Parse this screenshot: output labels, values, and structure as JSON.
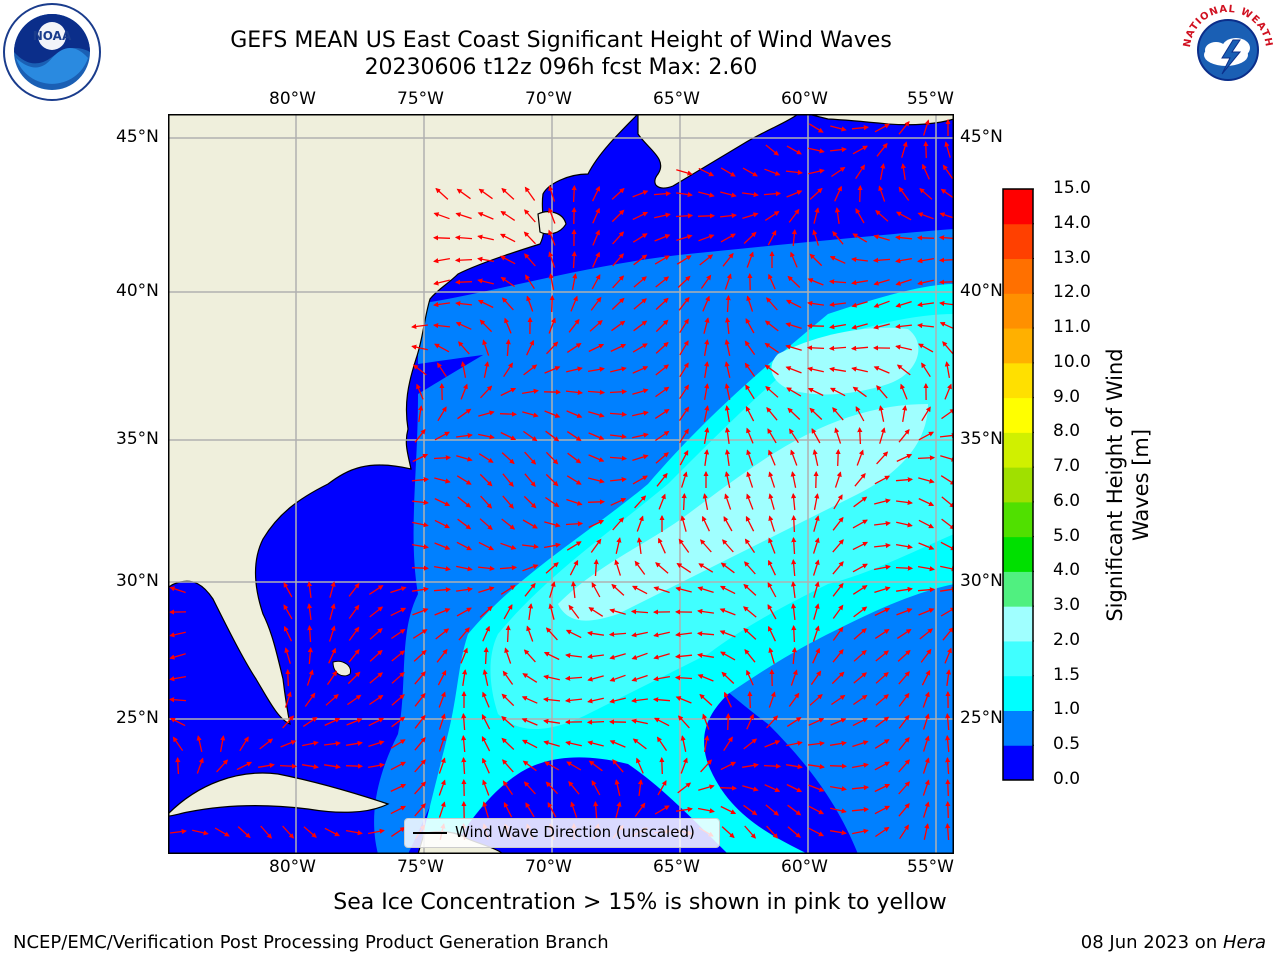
{
  "title": {
    "line1": "GEFS MEAN US East Coast Significant Height of Wind Waves",
    "line2": "20230606 t12z 096h fcst   Max: 2.60"
  },
  "logos": {
    "left": "noaa-logo",
    "right": "nws-logo",
    "nws_text": "NATIONAL WEATHER SERVICE",
    "noaa_ring": "NATIONAL OCEANIC AND ATMOSPHERIC ADMINISTRATION · U.S. DEPARTMENT OF COMMERCE"
  },
  "map": {
    "lon_labels": [
      "80°W",
      "75°W",
      "70°W",
      "65°W",
      "60°W",
      "55°W"
    ],
    "lat_labels": [
      "45°N",
      "40°N",
      "35°N",
      "30°N",
      "25°N"
    ],
    "lon_extent": [
      -85,
      -54.3
    ],
    "lat_extent": [
      20.5,
      46
    ],
    "ocean_colors": {
      "c0": "#0000ff",
      "c05": "#0080ff",
      "c10": "#00ffff",
      "c15": "#40ffff",
      "c20": "#a0ffff"
    },
    "land_color": "#efefdc",
    "arrow_color": "#ff0000",
    "legend_label": "Wind Wave Direction (unscaled)"
  },
  "colorbar": {
    "label": "Significant Height of Wind Waves [m]",
    "label_line1": "Significant Height of Wind",
    "label_line2": "Waves [m]",
    "ticks": [
      "0.0",
      "0.5",
      "1.0",
      "1.5",
      "2.0",
      "3.0",
      "4.0",
      "5.0",
      "6.0",
      "7.0",
      "8.0",
      "9.0",
      "10.0",
      "11.0",
      "12.0",
      "13.0",
      "14.0",
      "15.0"
    ],
    "colors": [
      "#0000ff",
      "#0080ff",
      "#00ffff",
      "#40ffff",
      "#a0ffff",
      "#50f080",
      "#00e000",
      "#50e000",
      "#a0e000",
      "#d0f000",
      "#ffff00",
      "#ffe000",
      "#ffb000",
      "#ff9000",
      "#ff7000",
      "#ff4000",
      "#ff0000"
    ]
  },
  "caption": "Sea Ice Concentration > 15% is shown in pink to yellow",
  "footer": {
    "left": "NCEP/EMC/Verification Post Processing Product Generation Branch",
    "right_date": "08 Jun 2023 on ",
    "right_host": "Hera"
  }
}
